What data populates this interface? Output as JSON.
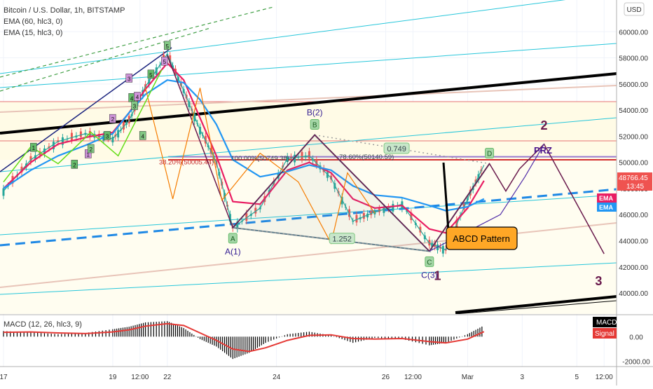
{
  "header": {
    "symbol_title": "Bitcoin / U.S. Dollar, 1h, BITSTAMP",
    "indicators": [
      "EMA (60, hlc3, 0)",
      "EMA (15, hlc3, 0)"
    ],
    "currency_button": "USD"
  },
  "chart_data": [
    {
      "type": "line",
      "title": "Bitcoin / U.S. Dollar, 1h, BITSTAMP",
      "ylim": [
        38500,
        62000
      ],
      "y_ticks": [
        "60000.00",
        "58000.00",
        "56000.00",
        "54000.00",
        "52000.00",
        "50000.00",
        "48000.00",
        "46000.00",
        "44000.00",
        "42000.00",
        "40000.00"
      ],
      "x_ticks": [
        "17",
        "19",
        "12:00",
        "22",
        "24",
        "26",
        "12:00",
        "Mar",
        "3",
        "5",
        "12:00"
      ],
      "x_tick_values": [
        0,
        2,
        2.5,
        3,
        5,
        7,
        7.5,
        8.5,
        9.5,
        10.5,
        11
      ],
      "xlim": [
        0,
        11.1
      ],
      "last_price": "48766.45",
      "countdown": "13:45",
      "grid": true,
      "series": [
        {
          "name": "Price",
          "color": "#26a69a",
          "x": [
            0,
            0.5,
            1,
            1.5,
            2,
            2.3,
            2.6,
            3,
            3.3,
            3.6,
            3.9,
            4.2,
            4.7,
            5.2,
            5.6,
            6,
            6.4,
            6.8,
            7.3,
            7.8,
            8.1,
            8.5,
            8.8
          ],
          "y": [
            47800,
            50200,
            51600,
            52200,
            51800,
            53200,
            55800,
            58300,
            55500,
            52500,
            50000,
            45000,
            46500,
            50300,
            50500,
            48800,
            45500,
            46200,
            46800,
            43800,
            43300,
            47200,
            49800
          ]
        },
        {
          "name": "EMA",
          "color": "#e91e63",
          "x": [
            0,
            0.5,
            1,
            1.5,
            2,
            2.3,
            2.6,
            3,
            3.3,
            3.6,
            3.9,
            4.2,
            4.7,
            5.2,
            5.6,
            6,
            6.4,
            6.8,
            7.3,
            7.8,
            8.1,
            8.5,
            8.8
          ],
          "y": [
            48000,
            50000,
            51400,
            51900,
            52300,
            53800,
            55600,
            57600,
            56300,
            53400,
            50500,
            47000,
            46800,
            49400,
            50000,
            49200,
            47200,
            46500,
            46700,
            44900,
            44600,
            46500,
            48600
          ]
        },
        {
          "name": "EMA",
          "color": "#2196f3",
          "x": [
            0,
            0.5,
            1,
            1.5,
            2,
            2.3,
            2.6,
            3,
            3.3,
            3.6,
            3.9,
            4.2,
            4.7,
            5.2,
            5.6,
            6,
            6.4,
            6.8,
            7.3,
            7.8,
            8.1,
            8.5,
            8.8
          ],
          "y": [
            48000,
            49400,
            50500,
            51300,
            52200,
            53800,
            55200,
            56300,
            56100,
            54800,
            52900,
            50200,
            48900,
            49300,
            49800,
            49400,
            48200,
            47500,
            47300,
            46700,
            46300,
            46600,
            47200
          ]
        }
      ],
      "harmonic_points": [
        {
          "label": "A",
          "caption": "A(1)",
          "x": 4.2,
          "y": 45000
        },
        {
          "label": "B",
          "caption": "B(2)",
          "x": 5.7,
          "y": 52100
        },
        {
          "label": "C",
          "caption": "C(3)",
          "x": 7.8,
          "y": 43200
        },
        {
          "label": "D",
          "x": 8.9,
          "y": 49900
        }
      ],
      "fib_labels": [
        {
          "text": "38.20%(50005.44)",
          "x": 3.35,
          "y": 50000
        },
        {
          "text": "100.00%(50749.38)",
          "x": 4.7,
          "y": 50300
        },
        {
          "text": "78.60%(50140.59)",
          "x": 6.65,
          "y": 50400
        },
        {
          "text": "0.749",
          "x": 7.2,
          "y": 51000
        },
        {
          "text": "1.252",
          "x": 6.2,
          "y": 44100
        }
      ],
      "wave_labels": [
        {
          "text": "1",
          "x": 7.95,
          "y": 41000
        },
        {
          "text": "2",
          "x": 9.9,
          "y": 52500
        },
        {
          "text": "3",
          "x": 10.9,
          "y": 40600
        }
      ],
      "annotations": {
        "prz": "PRZ",
        "callout": "ABCD Pattern"
      },
      "sub_waves": [
        "1",
        "2",
        "3",
        "4",
        "5",
        "1",
        "2",
        "3",
        "4",
        "5",
        "2",
        "3",
        "4",
        "5"
      ]
    },
    {
      "type": "bar",
      "title": "MACD (12, 26, hlc3, 9)",
      "ylim": [
        -2300,
        1600
      ],
      "y_ticks": [
        "0.00",
        "-2000.00"
      ],
      "series": [
        {
          "name": "MACD",
          "color": "#000000"
        },
        {
          "name": "Signal",
          "color": "#e53935"
        }
      ],
      "x": [
        0,
        0.5,
        1,
        1.5,
        2,
        2.3,
        2.6,
        3,
        3.3,
        3.6,
        3.9,
        4.2,
        4.5,
        4.8,
        5.2,
        5.6,
        6,
        6.4,
        6.8,
        7.3,
        7.8,
        8.1,
        8.5,
        8.8
      ],
      "macd": [
        450,
        350,
        200,
        300,
        600,
        800,
        1150,
        1250,
        700,
        -200,
        -800,
        -1800,
        -1300,
        -500,
        200,
        400,
        100,
        -500,
        -100,
        -200,
        -700,
        -500,
        200,
        900
      ],
      "signal": [
        350,
        380,
        300,
        250,
        380,
        550,
        850,
        1050,
        900,
        300,
        -300,
        -1000,
        -1200,
        -900,
        -300,
        100,
        150,
        -150,
        -200,
        -150,
        -400,
        -500,
        -200,
        400
      ]
    }
  ],
  "right_labels": {
    "price": "48766.45",
    "countdown": "13:45",
    "ema1": "EMA",
    "ema2": "EMA",
    "macd_badge": "MACD",
    "signal_badge": "Signal"
  }
}
